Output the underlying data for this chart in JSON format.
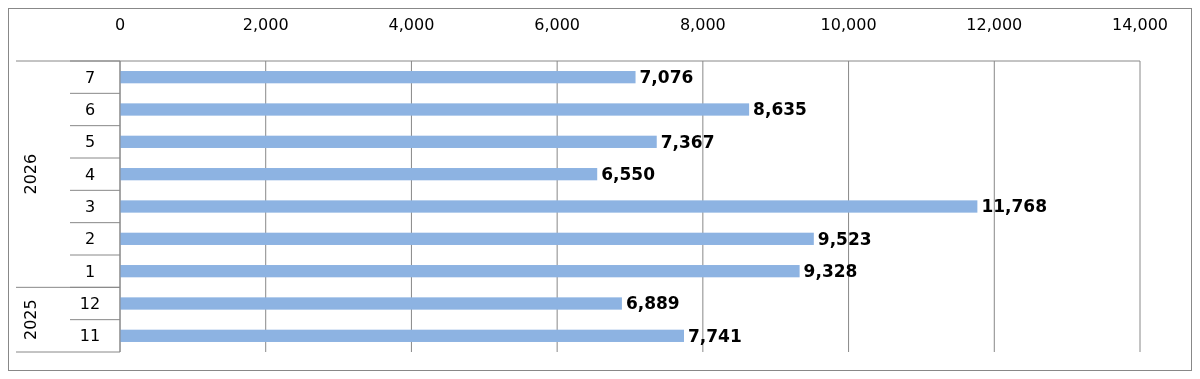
{
  "chart_data": {
    "type": "bar",
    "orientation": "horizontal",
    "categories": [
      "7",
      "6",
      "5",
      "4",
      "3",
      "2",
      "1",
      "12",
      "11"
    ],
    "values": [
      7076,
      8635,
      7367,
      6550,
      11768,
      9523,
      9328,
      6889,
      7741
    ],
    "color": "#8db3e2",
    "xlim": [
      0,
      14000
    ],
    "xticks": [
      {
        "value": 0,
        "label": "0"
      },
      {
        "value": 2000,
        "label": "2,000"
      },
      {
        "value": 4000,
        "label": "4,000"
      },
      {
        "value": 6000,
        "label": "6,000"
      },
      {
        "value": 8000,
        "label": "8,000"
      },
      {
        "value": 10000,
        "label": "10,000"
      },
      {
        "value": 12000,
        "label": "12,000"
      },
      {
        "value": 14000,
        "label": "14,000"
      }
    ],
    "grid": "x",
    "value_labels": [
      "7,076",
      "8,635",
      "7,367",
      "6,550",
      "11,768",
      "9,523",
      "9,328",
      "6,889",
      "7,741"
    ],
    "annotations": [
      "2026",
      "2025"
    ]
  }
}
